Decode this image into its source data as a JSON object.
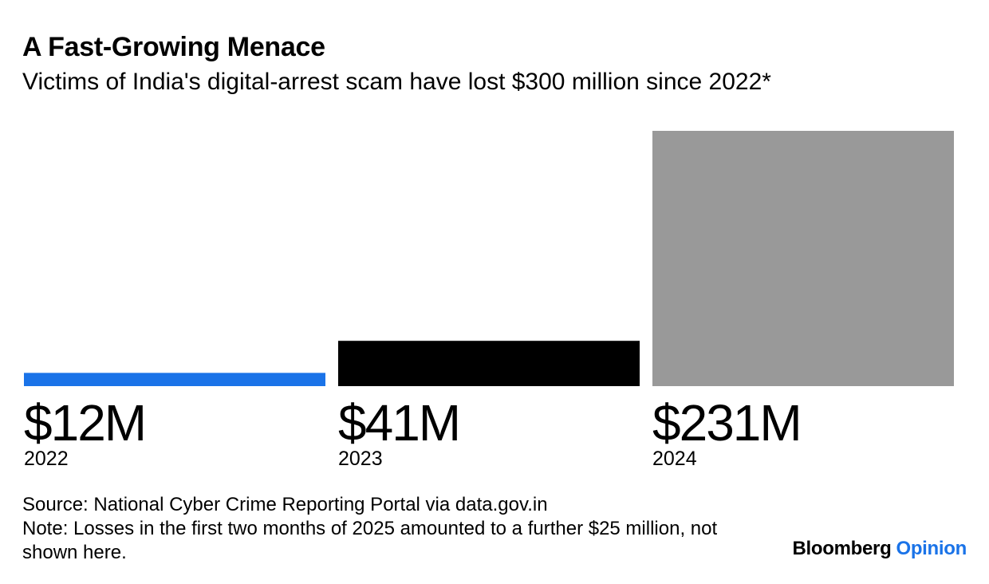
{
  "header": {
    "title": "A Fast-Growing Menace",
    "subtitle": "Victims of India's digital-arrest scam have lost $300 million since 2022*"
  },
  "chart_data": {
    "type": "bar",
    "title": "A Fast-Growing Menace",
    "subtitle": "Victims of India's digital-arrest scam have lost $300 million since 2022*",
    "categories": [
      "2022",
      "2023",
      "2024"
    ],
    "values": [
      12,
      41,
      231
    ],
    "value_labels": [
      "$12M",
      "$41M",
      "$231M"
    ],
    "unit": "million US dollars",
    "colors": [
      "#1a73e8",
      "#000000",
      "#999999"
    ],
    "xlabel": "",
    "ylabel": "",
    "ylim": [
      0,
      231
    ],
    "grid": false,
    "legend": "none"
  },
  "footer": {
    "source": "Source: National Cyber Crime Reporting Portal via data.gov.in",
    "note": "Note: Losses in the first two months of 2025 amounted to a further $25 million, not shown here."
  },
  "brand": {
    "name": "Bloomberg",
    "section": "Opinion",
    "accent_color": "#1a73e8"
  }
}
